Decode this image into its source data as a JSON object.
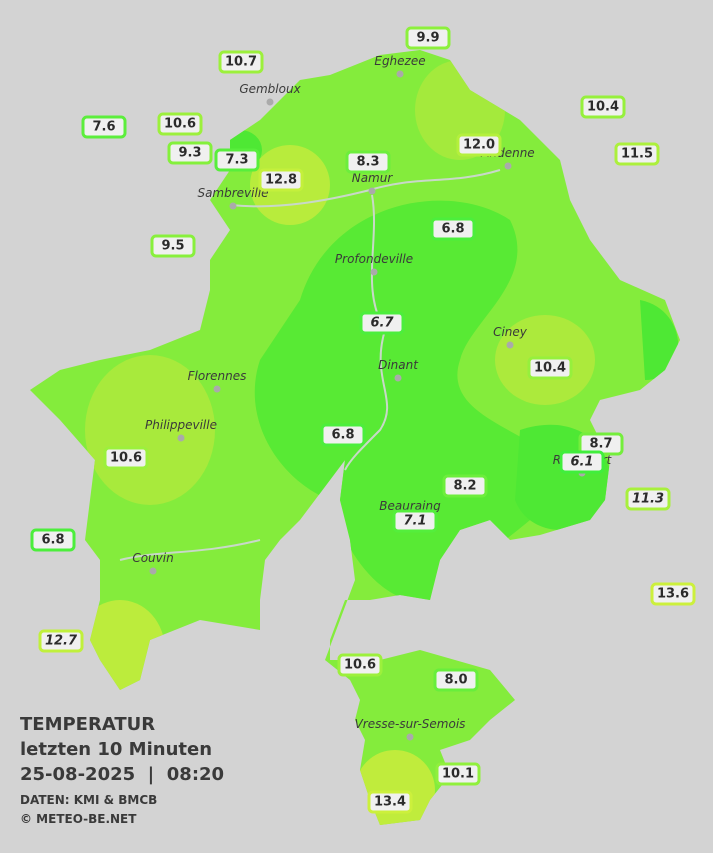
{
  "legend": {
    "title": "TEMPERATUR",
    "period": "letzten 10 Minuten",
    "datetime": "25-08-2025  |  08:20",
    "source": "DATEN: KMI & BMCB",
    "copyright": "© METEO-BE.NET"
  },
  "places": [
    "Eghezee",
    "Gembloux",
    "Andenne",
    "Namur",
    "Sambreville",
    "Profondeville",
    "Ciney",
    "Dinant",
    "Florennes",
    "Philippeville",
    "Rochefort",
    "Beauraing",
    "Couvin",
    "Vresse-sur-Semois"
  ],
  "stations": [
    {
      "value": "10.7",
      "color": "#9cf03c"
    },
    {
      "value": "9.9",
      "color": "#8cf03c"
    },
    {
      "value": "10.4",
      "color": "#96f03c"
    },
    {
      "value": "7.6",
      "color": "#5cee3c"
    },
    {
      "value": "10.6",
      "color": "#9cf03c"
    },
    {
      "value": "9.3",
      "color": "#84f03c"
    },
    {
      "value": "7.3",
      "color": "#58ee3c"
    },
    {
      "value": "12.8",
      "color": "#c4f03c"
    },
    {
      "value": "8.3",
      "color": "#6cee3c"
    },
    {
      "value": "12.0",
      "color": "#b4f03c"
    },
    {
      "value": "11.5",
      "color": "#acf03c"
    },
    {
      "value": "9.5",
      "color": "#88f03c"
    },
    {
      "value": "6.8",
      "color": "#4cee3c"
    },
    {
      "value": "6.7",
      "color": "#4cee3c",
      "italic": true
    },
    {
      "value": "10.4",
      "color": "#96f03c"
    },
    {
      "value": "6.8",
      "color": "#4cee3c"
    },
    {
      "value": "10.6",
      "color": "#9cf03c"
    },
    {
      "value": "8.7",
      "color": "#74ee3c"
    },
    {
      "value": "6.1",
      "color": "#40ee3c",
      "italic": true
    },
    {
      "value": "8.2",
      "color": "#6cee3c"
    },
    {
      "value": "11.3",
      "color": "#a8f03c",
      "italic": true
    },
    {
      "value": "7.1",
      "color": "#54ee3c",
      "italic": true
    },
    {
      "value": "6.8",
      "color": "#4cee3c"
    },
    {
      "value": "13.6",
      "color": "#ccf03c"
    },
    {
      "value": "12.7",
      "color": "#c0f03c",
      "italic": true
    },
    {
      "value": "10.6",
      "color": "#9cf03c"
    },
    {
      "value": "8.0",
      "color": "#68ee3c"
    },
    {
      "value": "10.1",
      "color": "#90f03c"
    },
    {
      "value": "13.4",
      "color": "#ccf03c"
    }
  ]
}
